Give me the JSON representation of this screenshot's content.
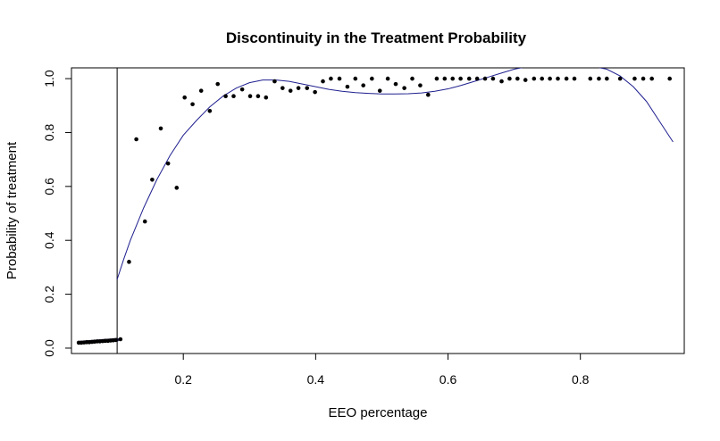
{
  "chart_data": {
    "type": "scatter",
    "title": "Discontinuity in the Treatment Probability",
    "xlabel": "EEO percentage",
    "ylabel": "Probability of treatment",
    "xlim": [
      0.031,
      0.957
    ],
    "ylim": [
      -0.02,
      1.04
    ],
    "x_ticks": [
      0.2,
      0.4,
      0.6,
      0.8
    ],
    "y_ticks": [
      0.0,
      0.2,
      0.4,
      0.6,
      0.8,
      1.0
    ],
    "x_tick_labels": [
      "0.2",
      "0.4",
      "0.6",
      "0.8"
    ],
    "y_tick_labels": [
      "0.0",
      "0.2",
      "0.4",
      "0.6",
      "0.8",
      "1.0"
    ],
    "cutoff_line_x": 0.1,
    "point_color": "#000000",
    "fit_color": "#1f1f8f",
    "low_segment_color": "#1a1a4a",
    "points": [
      [
        0.042,
        0.02
      ],
      [
        0.046,
        0.02
      ],
      [
        0.05,
        0.021
      ],
      [
        0.054,
        0.022
      ],
      [
        0.058,
        0.022
      ],
      [
        0.062,
        0.023
      ],
      [
        0.066,
        0.024
      ],
      [
        0.07,
        0.025
      ],
      [
        0.074,
        0.025
      ],
      [
        0.078,
        0.026
      ],
      [
        0.082,
        0.027
      ],
      [
        0.086,
        0.027
      ],
      [
        0.09,
        0.028
      ],
      [
        0.094,
        0.029
      ],
      [
        0.098,
        0.03
      ],
      [
        0.105,
        0.033
      ],
      [
        0.118,
        0.32
      ],
      [
        0.129,
        0.775
      ],
      [
        0.142,
        0.47
      ],
      [
        0.153,
        0.625
      ],
      [
        0.166,
        0.815
      ],
      [
        0.177,
        0.685
      ],
      [
        0.19,
        0.595
      ],
      [
        0.202,
        0.93
      ],
      [
        0.214,
        0.905
      ],
      [
        0.227,
        0.955
      ],
      [
        0.24,
        0.88
      ],
      [
        0.252,
        0.98
      ],
      [
        0.264,
        0.935
      ],
      [
        0.276,
        0.935
      ],
      [
        0.289,
        0.96
      ],
      [
        0.301,
        0.935
      ],
      [
        0.313,
        0.935
      ],
      [
        0.325,
        0.93
      ],
      [
        0.338,
        0.99
      ],
      [
        0.35,
        0.965
      ],
      [
        0.362,
        0.955
      ],
      [
        0.374,
        0.965
      ],
      [
        0.387,
        0.965
      ],
      [
        0.399,
        0.95
      ],
      [
        0.411,
        0.99
      ],
      [
        0.423,
        1.0
      ],
      [
        0.436,
        1.0
      ],
      [
        0.448,
        0.97
      ],
      [
        0.46,
        1.0
      ],
      [
        0.472,
        0.975
      ],
      [
        0.485,
        1.0
      ],
      [
        0.497,
        0.955
      ],
      [
        0.509,
        1.0
      ],
      [
        0.521,
        0.98
      ],
      [
        0.534,
        0.965
      ],
      [
        0.546,
        1.0
      ],
      [
        0.558,
        0.975
      ],
      [
        0.57,
        0.94
      ],
      [
        0.583,
        1.0
      ],
      [
        0.595,
        1.0
      ],
      [
        0.607,
        1.0
      ],
      [
        0.619,
        1.0
      ],
      [
        0.632,
        1.0
      ],
      [
        0.644,
        1.0
      ],
      [
        0.656,
        1.0
      ],
      [
        0.668,
        1.0
      ],
      [
        0.681,
        0.99
      ],
      [
        0.693,
        1.0
      ],
      [
        0.705,
        1.0
      ],
      [
        0.717,
        0.995
      ],
      [
        0.73,
        1.0
      ],
      [
        0.742,
        1.0
      ],
      [
        0.754,
        1.0
      ],
      [
        0.766,
        1.0
      ],
      [
        0.779,
        1.0
      ],
      [
        0.791,
        1.0
      ],
      [
        0.815,
        1.0
      ],
      [
        0.828,
        1.0
      ],
      [
        0.84,
        1.0
      ],
      [
        0.86,
        1.0
      ],
      [
        0.882,
        1.0
      ],
      [
        0.895,
        1.0
      ],
      [
        0.908,
        1.0
      ],
      [
        0.935,
        1.0
      ]
    ],
    "fit_curve": [
      [
        0.1,
        0.255
      ],
      [
        0.11,
        0.33
      ],
      [
        0.12,
        0.4
      ],
      [
        0.14,
        0.52
      ],
      [
        0.16,
        0.625
      ],
      [
        0.18,
        0.715
      ],
      [
        0.2,
        0.79
      ],
      [
        0.22,
        0.845
      ],
      [
        0.24,
        0.895
      ],
      [
        0.26,
        0.935
      ],
      [
        0.28,
        0.965
      ],
      [
        0.3,
        0.985
      ],
      [
        0.32,
        0.995
      ],
      [
        0.34,
        0.995
      ],
      [
        0.36,
        0.99
      ],
      [
        0.38,
        0.98
      ],
      [
        0.4,
        0.97
      ],
      [
        0.42,
        0.96
      ],
      [
        0.44,
        0.953
      ],
      [
        0.46,
        0.948
      ],
      [
        0.48,
        0.945
      ],
      [
        0.5,
        0.943
      ],
      [
        0.52,
        0.943
      ],
      [
        0.54,
        0.944
      ],
      [
        0.56,
        0.947
      ],
      [
        0.58,
        0.953
      ],
      [
        0.6,
        0.962
      ],
      [
        0.62,
        0.975
      ],
      [
        0.64,
        0.99
      ],
      [
        0.66,
        1.005
      ],
      [
        0.68,
        1.02
      ],
      [
        0.7,
        1.035
      ],
      [
        0.72,
        1.045
      ],
      [
        0.74,
        1.05
      ],
      [
        0.76,
        1.052
      ],
      [
        0.78,
        1.052
      ],
      [
        0.8,
        1.05
      ],
      [
        0.82,
        1.045
      ],
      [
        0.84,
        1.035
      ],
      [
        0.86,
        1.01
      ],
      [
        0.88,
        0.97
      ],
      [
        0.9,
        0.915
      ],
      [
        0.92,
        0.84
      ],
      [
        0.94,
        0.765
      ]
    ],
    "low_segment": [
      [
        0.042,
        0.02
      ],
      [
        0.1,
        0.031
      ]
    ]
  }
}
